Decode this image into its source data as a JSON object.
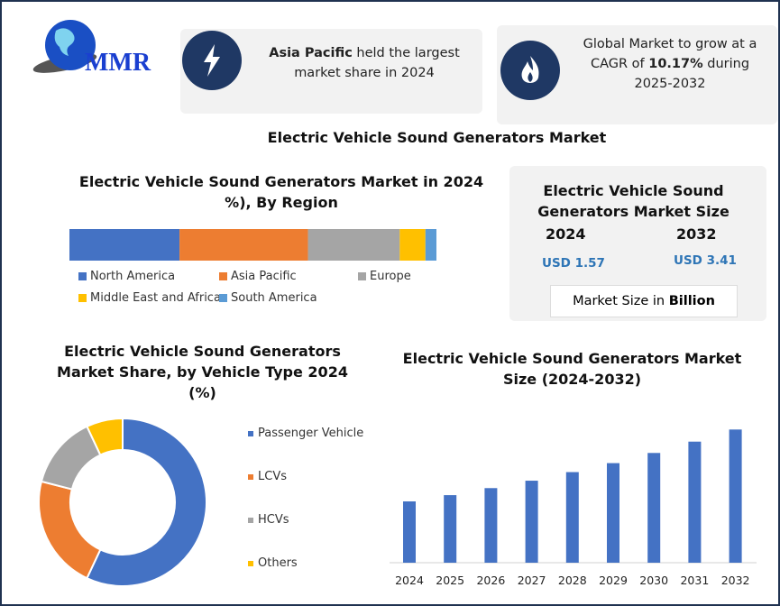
{
  "logo": {
    "text": "MMR"
  },
  "card1": {
    "bold": "Asia Pacific",
    "rest": " held the largest market share in 2024",
    "icon": "lightning-icon"
  },
  "card2": {
    "line1": "Global Market to grow at a CAGR of ",
    "bold": "10.17%",
    "line2": " during 2025-2032",
    "icon": "flame-icon"
  },
  "main_title": "Electric Vehicle Sound Generators Market",
  "size_card": {
    "title": "Electric Vehicle Sound Generators Market Size",
    "year1": "2024",
    "year2": "2032",
    "value1": "USD 1.57",
    "value2": "USD 3.41",
    "unit_prefix": "Market Size in ",
    "unit_bold": "Billion",
    "value_color": "#2e75b6"
  },
  "chart_data": [
    {
      "type": "bar",
      "orientation": "horizontal-stacked",
      "title": "Electric Vehicle Sound Generators Market in 2024 %), By Region",
      "title_line1": "Electric Vehicle Sound Generators Market in 2024",
      "title_line2": "%), By Region",
      "legend_position": "bottom",
      "series": [
        {
          "name": "North America",
          "values": [
            30
          ],
          "color": "#4472c4"
        },
        {
          "name": "Asia Pacific",
          "values": [
            35
          ],
          "color": "#ed7d31"
        },
        {
          "name": "Europe",
          "values": [
            25
          ],
          "color": "#a5a5a5"
        },
        {
          "name": "Middle East and Africa",
          "values": [
            7
          ],
          "color": "#ffc000"
        },
        {
          "name": "South America",
          "values": [
            3
          ],
          "color": "#5b9bd5"
        }
      ]
    },
    {
      "type": "pie",
      "style": "donut",
      "title_line1": "Electric Vehicle Sound Generators",
      "title_line2": "Market Share, by Vehicle Type 2024",
      "title_line3": "(%)",
      "legend_position": "right",
      "categories": [
        "Passenger Vehicle",
        "LCVs",
        "HCVs",
        "Others"
      ],
      "values": [
        57,
        22,
        14,
        7
      ],
      "colors": [
        "#4472c4",
        "#ed7d31",
        "#a5a5a5",
        "#ffc000"
      ]
    },
    {
      "type": "bar",
      "title_line1": "Electric Vehicle Sound Generators Market",
      "title_line2": "Size (2024-2032)",
      "categories": [
        "2024",
        "2025",
        "2026",
        "2027",
        "2028",
        "2029",
        "2030",
        "2031",
        "2032"
      ],
      "values": [
        1.57,
        1.73,
        1.91,
        2.1,
        2.32,
        2.55,
        2.81,
        3.1,
        3.41
      ],
      "ylim": [
        0,
        3.6
      ],
      "color": "#4472c4",
      "grid": false
    }
  ]
}
